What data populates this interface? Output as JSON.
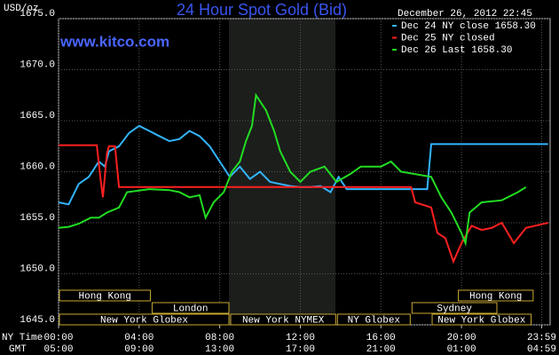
{
  "chart_data": {
    "type": "line",
    "title": "24 Hour Spot Gold (Bid)",
    "timestamp": "December 26, 2012 22:45",
    "watermark": "www.kitco.com",
    "y_label": "USD/oz",
    "x_row_labels": [
      "NY Time",
      "GMT"
    ],
    "xlim": [
      0,
      24.4
    ],
    "ylim": [
      1645,
      1675
    ],
    "grid": true,
    "yticks": [
      {
        "value": 1645,
        "label": "1645.0"
      },
      {
        "value": 1650,
        "label": "1650.0"
      },
      {
        "value": 1655,
        "label": "1655.0"
      },
      {
        "value": 1660,
        "label": "1660.0"
      },
      {
        "value": 1665,
        "label": "1665.0"
      },
      {
        "value": 1670,
        "label": "1670.0"
      },
      {
        "value": 1675,
        "label": "1675.0"
      }
    ],
    "xticks": [
      {
        "value": 0,
        "label": "00:00"
      },
      {
        "value": 4,
        "label": "04:00"
      },
      {
        "value": 8,
        "label": "08:00"
      },
      {
        "value": 12,
        "label": "12:00"
      },
      {
        "value": 16,
        "label": "16:00"
      },
      {
        "value": 20,
        "label": "20:00"
      },
      {
        "value": 23.98,
        "label": "23:59"
      }
    ],
    "gmt_labels": [
      "05:00",
      "09:00",
      "13:00",
      "17:00",
      "21:00",
      "01:00",
      "04:59"
    ],
    "sessions": [
      {
        "label": "Hong Kong"
      },
      {
        "label": "London"
      },
      {
        "label": "New York Globex"
      },
      {
        "label": "New York NYMEX"
      },
      {
        "label": "NY Globex"
      },
      {
        "label": "Sydney"
      },
      {
        "label": "Hong Kong"
      },
      {
        "label": "New York Globex"
      }
    ],
    "series": [
      {
        "name": "Dec 24 NY close 1658.30",
        "color": "#33b5ff",
        "x": [
          0,
          0.5,
          1,
          1.5,
          2,
          2.3,
          2.5,
          3,
          3.5,
          4,
          4.5,
          5,
          5.5,
          6,
          6.5,
          7,
          7.5,
          8,
          8.5,
          9,
          9.5,
          10,
          10.5,
          11,
          11.5,
          12,
          12.5,
          13,
          13.5,
          13.9,
          14.3,
          16,
          18.3,
          18.5,
          20,
          22,
          24.3
        ],
        "values": [
          1657,
          1656.8,
          1658.8,
          1659.5,
          1661,
          1660.5,
          1662,
          1662.5,
          1663.8,
          1664.5,
          1664,
          1663.5,
          1663,
          1663.2,
          1664,
          1663.5,
          1662.5,
          1661,
          1659.5,
          1660.5,
          1659.3,
          1660,
          1659,
          1658.8,
          1658.6,
          1658.5,
          1658.5,
          1658.6,
          1658,
          1659.5,
          1658.3,
          1658.3,
          1658.3,
          1662.7,
          1662.7,
          1662.7,
          1662.7
        ]
      },
      {
        "name": "Dec 25 NY closed",
        "color": "#ff2020",
        "x": [
          0,
          1.9,
          2.1,
          2.2,
          2.4,
          2.5,
          2.8,
          3.0,
          6,
          10,
          14,
          17.5,
          17.7,
          18.5,
          18.8,
          19.2,
          19.6,
          20,
          20.5,
          21,
          21.5,
          22,
          22.6,
          23.2,
          24.3
        ],
        "values": [
          1662.6,
          1662.6,
          1659,
          1657.5,
          1661.8,
          1662.5,
          1662.5,
          1658.5,
          1658.5,
          1658.5,
          1658.5,
          1658.5,
          1657,
          1656.5,
          1654,
          1653.5,
          1651.2,
          1653,
          1654.7,
          1654.3,
          1654.5,
          1655,
          1653,
          1654.5,
          1655
        ]
      },
      {
        "name": "Dec 26 Last 1658.30",
        "color": "#22dd22",
        "x": [
          0,
          0.5,
          1,
          1.6,
          2,
          2.4,
          3,
          3.4,
          4.5,
          5.5,
          6,
          6.5,
          7,
          7.3,
          7.7,
          8.2,
          8.6,
          9,
          9.3,
          9.6,
          9.8,
          10.3,
          10.7,
          11,
          11.5,
          12,
          12.5,
          13.2,
          13.8,
          14.5,
          15,
          16,
          16.5,
          17,
          18.5,
          19,
          19.5,
          20,
          20.2,
          20.4,
          21,
          22,
          22.8,
          23.2
        ],
        "values": [
          1654.5,
          1654.6,
          1654.9,
          1655.5,
          1655.5,
          1656,
          1656.5,
          1658,
          1658.3,
          1658.2,
          1658,
          1657.5,
          1657.7,
          1655.5,
          1657,
          1658,
          1660,
          1661,
          1663,
          1664.5,
          1667.5,
          1666,
          1664,
          1662,
          1660,
          1659,
          1660,
          1660.5,
          1659,
          1659.8,
          1660.5,
          1660.5,
          1661,
          1660,
          1659.5,
          1657.5,
          1656,
          1654,
          1653,
          1656,
          1657,
          1657.2,
          1658,
          1658.5
        ]
      }
    ]
  }
}
